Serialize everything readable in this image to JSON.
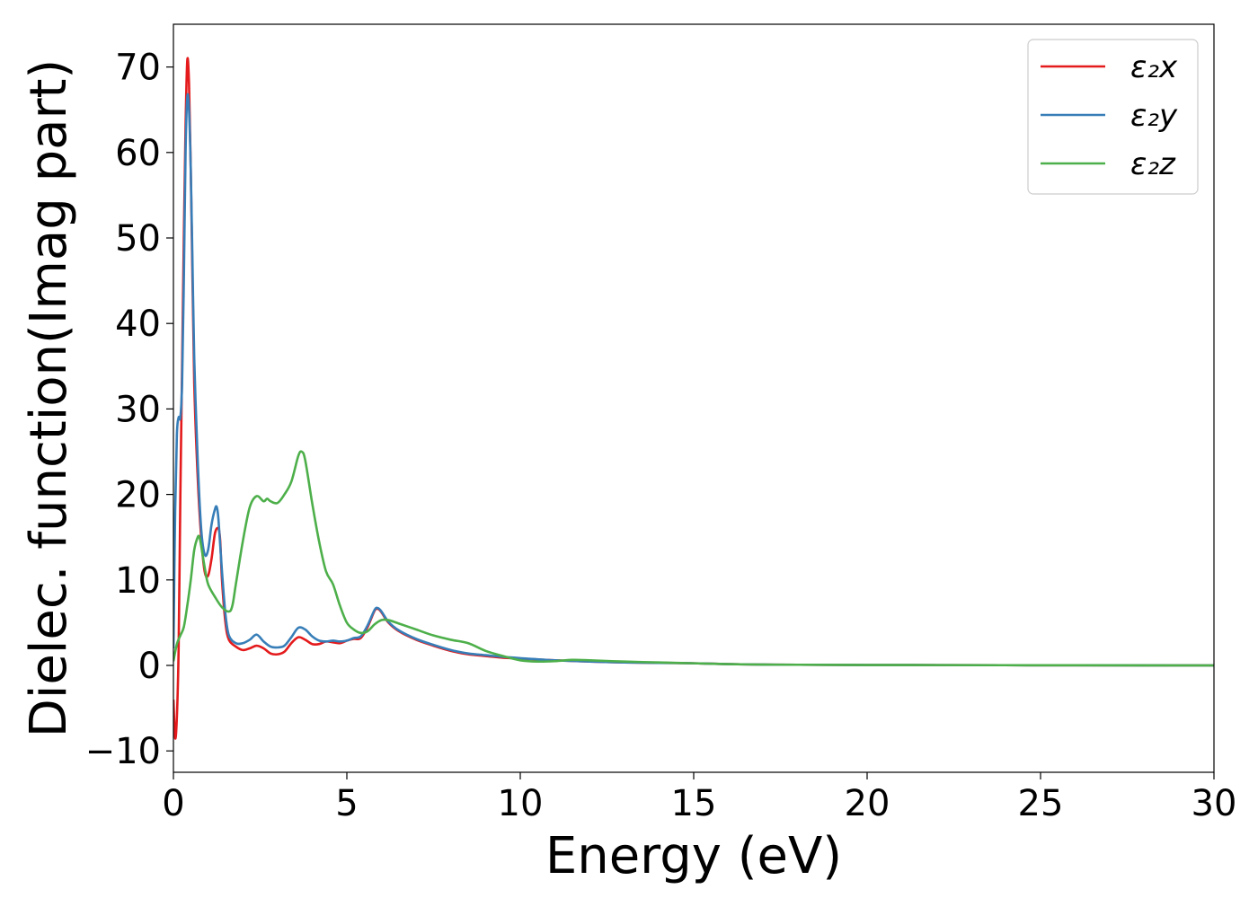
{
  "chart_data": {
    "type": "line",
    "title": "",
    "xlabel": "Energy (eV)",
    "ylabel": "Dielec. function(Imag part)",
    "xlim": [
      0,
      30
    ],
    "ylim": [
      -12.5,
      75
    ],
    "x_ticks": [
      0,
      5,
      10,
      15,
      20,
      25,
      30
    ],
    "x_tick_labels": [
      "0",
      "5",
      "10",
      "15",
      "20",
      "25",
      "30"
    ],
    "y_ticks": [
      -10,
      0,
      10,
      20,
      30,
      40,
      50,
      60,
      70
    ],
    "y_tick_labels": [
      "−10",
      "0",
      "10",
      "20",
      "30",
      "40",
      "50",
      "60",
      "70"
    ],
    "grid": false,
    "legend": {
      "position": "top-right"
    },
    "series": [
      {
        "name": "ε₂x",
        "color": "#e41a1c",
        "x": [
          0,
          0.05,
          0.1,
          0.15,
          0.2,
          0.25,
          0.3,
          0.35,
          0.4,
          0.45,
          0.5,
          0.55,
          0.6,
          0.7,
          0.8,
          0.9,
          1.0,
          1.1,
          1.2,
          1.3,
          1.35,
          1.4,
          1.5,
          1.6,
          1.8,
          2.0,
          2.2,
          2.4,
          2.6,
          2.8,
          3.0,
          3.2,
          3.4,
          3.6,
          3.8,
          4.0,
          4.2,
          4.4,
          4.6,
          4.8,
          5.0,
          5.2,
          5.4,
          5.6,
          5.8,
          5.9,
          6.0,
          6.2,
          6.5,
          7.0,
          7.5,
          8.0,
          8.5,
          9.0,
          9.5,
          10.0,
          11.0,
          12.0,
          13.0,
          14.0,
          15.0,
          16.0,
          17.0,
          18.0,
          20.0,
          22.0,
          25.0,
          28.0,
          30.0
        ],
        "values": [
          -4,
          -8.5,
          -6,
          2,
          20,
          35,
          50,
          63,
          70.8,
          68,
          58,
          45,
          33,
          22,
          15,
          11,
          10.5,
          12.5,
          15.5,
          16,
          14.5,
          10,
          5,
          3,
          2.2,
          1.8,
          2.0,
          2.3,
          2.0,
          1.4,
          1.3,
          1.6,
          2.6,
          3.3,
          3.0,
          2.5,
          2.5,
          2.8,
          2.7,
          2.6,
          2.9,
          3.1,
          3.2,
          4.5,
          6.4,
          6.6,
          6.2,
          5.0,
          4.0,
          3.0,
          2.3,
          1.7,
          1.3,
          1.1,
          0.9,
          0.8,
          0.6,
          0.45,
          0.35,
          0.3,
          0.25,
          0.15,
          0.1,
          0.08,
          0.05,
          0.04,
          0.02,
          0.01,
          0.0
        ]
      },
      {
        "name": "ε₂y",
        "color": "#377eb8",
        "x": [
          0,
          0.05,
          0.1,
          0.15,
          0.2,
          0.25,
          0.3,
          0.35,
          0.4,
          0.45,
          0.5,
          0.55,
          0.6,
          0.7,
          0.8,
          0.9,
          1.0,
          1.1,
          1.2,
          1.25,
          1.3,
          1.4,
          1.5,
          1.6,
          1.8,
          2.0,
          2.2,
          2.4,
          2.6,
          2.8,
          3.0,
          3.2,
          3.4,
          3.6,
          3.8,
          4.0,
          4.2,
          4.4,
          4.6,
          4.8,
          5.0,
          5.2,
          5.4,
          5.6,
          5.8,
          5.9,
          6.0,
          6.2,
          6.5,
          7.0,
          7.5,
          8.0,
          8.5,
          9.0,
          9.5,
          10.0,
          11.0,
          12.0,
          13.0,
          14.0,
          15.0,
          16.0,
          17.0,
          18.0,
          20.0,
          22.0,
          25.0,
          28.0,
          30.0
        ],
        "values": [
          2,
          18,
          27,
          29,
          29,
          33,
          45,
          60,
          66.5,
          65,
          58,
          47,
          36,
          24,
          16,
          13,
          13.5,
          16.5,
          18.3,
          18.5,
          17,
          11,
          6,
          3.5,
          2.6,
          2.6,
          3.0,
          3.6,
          2.8,
          2.2,
          2.1,
          2.3,
          3.3,
          4.4,
          4.2,
          3.4,
          2.9,
          2.8,
          2.9,
          2.8,
          2.9,
          3.2,
          3.4,
          4.7,
          6.5,
          6.7,
          6.3,
          5.1,
          4.1,
          3.1,
          2.4,
          1.8,
          1.4,
          1.2,
          1.0,
          0.85,
          0.6,
          0.45,
          0.35,
          0.3,
          0.25,
          0.15,
          0.1,
          0.08,
          0.05,
          0.04,
          0.02,
          0.01,
          0.0
        ]
      },
      {
        "name": "ε₂z",
        "color": "#4daf4a",
        "x": [
          0,
          0.1,
          0.2,
          0.3,
          0.4,
          0.5,
          0.6,
          0.7,
          0.75,
          0.8,
          0.9,
          1.0,
          1.2,
          1.4,
          1.6,
          1.7,
          1.8,
          2.0,
          2.2,
          2.4,
          2.6,
          2.7,
          2.8,
          3.0,
          3.2,
          3.4,
          3.6,
          3.7,
          3.8,
          4.0,
          4.2,
          4.4,
          4.6,
          4.8,
          5.0,
          5.2,
          5.4,
          5.6,
          5.8,
          6.0,
          6.2,
          6.5,
          7.0,
          7.5,
          8.0,
          8.5,
          9.0,
          9.5,
          10.0,
          10.5,
          11.0,
          11.5,
          12.0,
          13.0,
          14.0,
          15.0,
          16.0,
          17.0,
          18.0,
          20.0,
          22.0,
          25.0,
          28.0,
          30.0
        ],
        "values": [
          0.5,
          2.5,
          3.5,
          4.5,
          7,
          10,
          13.5,
          15,
          15,
          14,
          11.5,
          9.5,
          8,
          6.8,
          6.3,
          7,
          9.5,
          14.5,
          18.5,
          19.8,
          19.2,
          19.5,
          19.2,
          19.0,
          20,
          21.5,
          24.5,
          25.0,
          24,
          19,
          14.5,
          11,
          9.5,
          7,
          5,
          4.2,
          3.8,
          4.0,
          4.8,
          5.3,
          5.3,
          4.9,
          4.2,
          3.5,
          3.0,
          2.6,
          1.7,
          1.1,
          0.6,
          0.45,
          0.5,
          0.65,
          0.6,
          0.45,
          0.35,
          0.25,
          0.15,
          0.1,
          0.08,
          0.05,
          0.04,
          0.02,
          0.01,
          0.0
        ]
      }
    ]
  }
}
